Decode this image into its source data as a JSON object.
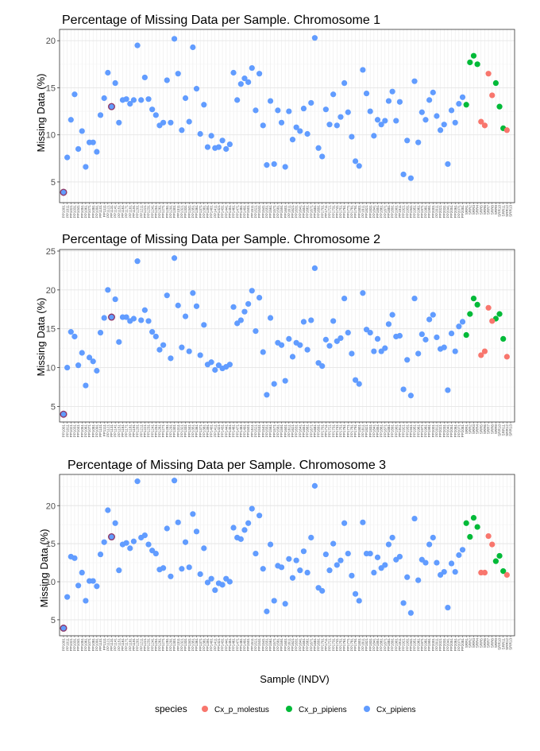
{
  "colors": {
    "Cx_p_molestus": "#F8766D",
    "Cx_p_pipiens": "#00BA38",
    "Cx_pipiens": "#619CFF",
    "highlight_outline": "#8E3A6A"
  },
  "shared": {
    "xlabel": "Sample (INDV)",
    "legend": {
      "title": "species",
      "items": [
        "Cx_p_molestus",
        "Cx_p_pipiens",
        "Cx_pipiens"
      ],
      "placement": "bottom"
    }
  },
  "chart_data": [
    {
      "type": "scatter",
      "title": "Percentage of Missing Data per Sample. Chromosome 1",
      "ylabel": "Missing Data (%)",
      "yticks": [
        5,
        10,
        15,
        20
      ],
      "ylim": [
        2.8,
        21.2
      ],
      "grid": true,
      "x": [
        "PP1001",
        "PP1011",
        "PP1021",
        "PP1031",
        "PP1041",
        "PP1051",
        "PP1061",
        "PP1071",
        "PP1081",
        "PP1091",
        "PP1101",
        "PP1111",
        "PP1121",
        "PP1131",
        "PP1141",
        "PP1151",
        "PP1161",
        "PP1171",
        "PP1181",
        "PP1191",
        "PP1201",
        "PP1211",
        "PP1221",
        "PP1231",
        "PP1241",
        "PP1251",
        "PP1261",
        "PP1271",
        "PP1281",
        "PP1291",
        "PP1301",
        "PP1311",
        "PP1321",
        "PP1331",
        "PP1341",
        "PP1351",
        "PP1361",
        "PP1371",
        "PP1381",
        "PP1391",
        "PP1401",
        "PP1411",
        "PP1421",
        "PP1431",
        "PP1441",
        "PP1451",
        "PP1461",
        "PP1471",
        "PP1481",
        "PP1491",
        "PP1501",
        "PP1511",
        "PP1521",
        "PP1531",
        "PP1541",
        "PP1551",
        "PP1561",
        "PP1571",
        "PP1581",
        "PP1591",
        "PP1601",
        "PP1611",
        "PP1621",
        "PP1631",
        "PP1641",
        "PP1651",
        "PP1661",
        "PP1671",
        "PP1681",
        "PP1691",
        "PP1701",
        "PP1711",
        "PP1721",
        "PP1731",
        "PP1741",
        "PP1751",
        "PP1761",
        "PP1771",
        "PP1781",
        "PP1791",
        "PP1801",
        "PP1811",
        "PP1821",
        "PP1831",
        "PP1841",
        "PP1851",
        "PP1861",
        "PP1871",
        "PP1881",
        "PP1891",
        "PP1901",
        "PP1911",
        "PP1921",
        "PP1931",
        "PP1941",
        "PP1951",
        "PP1961",
        "PP1971",
        "PP1981",
        "PP1991",
        "PP2001",
        "PP2011",
        "PP2021",
        "PP2031",
        "PP2041",
        "PP2051",
        "PP2061",
        "PP2071",
        "PP2081",
        "SRR1",
        "SRR2",
        "SRR3",
        "SRR4",
        "SRR5",
        "SRR6",
        "SRR7",
        "SRR8",
        "SRR9",
        "SRR10",
        "SRR11",
        "SRR12",
        "SRR13"
      ],
      "series": [
        {
          "name": "Cx_pipiens",
          "x_index": [
            0,
            1,
            2,
            3,
            4,
            5,
            6,
            7,
            8,
            9,
            10,
            11,
            12,
            13,
            14,
            15,
            16,
            17,
            18,
            19,
            20,
            21,
            22,
            23,
            24,
            25,
            26,
            27,
            28,
            29,
            30,
            31,
            32,
            33,
            34,
            35,
            36,
            37,
            38,
            39,
            40,
            41,
            42,
            43,
            44,
            45,
            46,
            47,
            48,
            49,
            50,
            51,
            52,
            53,
            54,
            55,
            56,
            57,
            58,
            59,
            60,
            61,
            62,
            63,
            64,
            65,
            66,
            67,
            68,
            69,
            70,
            71,
            72,
            73,
            74,
            75,
            76,
            77,
            78,
            79,
            80,
            81,
            82,
            83,
            84,
            85,
            86,
            87,
            88,
            89,
            90,
            91,
            92,
            93,
            94,
            95,
            96,
            97,
            98,
            99,
            100,
            101,
            102,
            103,
            104,
            105,
            106,
            107,
            108
          ],
          "values": [
            3.9,
            7.6,
            11.6,
            14.3,
            8.5,
            10.4,
            6.6,
            9.2,
            9.2,
            8.2,
            12.1,
            13.9,
            16.6,
            13.0,
            15.5,
            11.3,
            13.7,
            13.8,
            13.3,
            13.7,
            19.5,
            13.7,
            16.1,
            13.8,
            12.7,
            12.1,
            11.0,
            11.3,
            15.8,
            11.3,
            20.2,
            16.5,
            10.5,
            13.9,
            11.4,
            19.3,
            14.9,
            10.1,
            13.2,
            8.7,
            9.9,
            8.6,
            8.7,
            9.4,
            8.5,
            9.0,
            16.6,
            13.7,
            15.4,
            16.0,
            15.6,
            17.1,
            12.6,
            16.5,
            11.0,
            6.8,
            13.6,
            6.9,
            12.6,
            11.3,
            6.6,
            12.5,
            9.5,
            10.8,
            10.4,
            12.8,
            10.1,
            13.4,
            20.3,
            8.6,
            7.7,
            12.7,
            11.1,
            14.3,
            11.0,
            11.9,
            15.5,
            12.4,
            9.8,
            7.2,
            6.7,
            16.9,
            14.4,
            12.5,
            9.9,
            11.6,
            11.1,
            11.5,
            13.6,
            14.6,
            11.5,
            13.5,
            5.8,
            9.4,
            5.4,
            15.7,
            9.2,
            12.4,
            11.6,
            13.7,
            14.5,
            12.0,
            10.5,
            11.1,
            6.9,
            12.6,
            11.3,
            13.3,
            14.0
          ]
        },
        {
          "name": "Cx_p_pipiens",
          "x_index": [
            109,
            110,
            111,
            112,
            117,
            118,
            119
          ],
          "values": [
            13.2,
            17.7,
            18.4,
            17.5,
            15.5,
            13.0,
            10.7
          ]
        },
        {
          "name": "Cx_p_molestus",
          "x_index": [
            113,
            114,
            115,
            116,
            120
          ],
          "values": [
            11.4,
            11.0,
            16.5,
            14.2,
            10.5
          ]
        }
      ],
      "highlighted": [
        {
          "x_index": 0,
          "value": 3.9
        },
        {
          "x_index": 13,
          "value": 13.0
        }
      ]
    },
    {
      "type": "scatter",
      "title": "Percentage of Missing Data per Sample. Chromosome 2",
      "ylabel": "Missing Data (%)",
      "yticks": [
        5,
        10,
        15,
        20,
        25
      ],
      "ylim": [
        3.0,
        25.2
      ],
      "grid": true,
      "series": [
        {
          "name": "Cx_pipiens",
          "x_index": [
            0,
            1,
            2,
            3,
            4,
            5,
            6,
            7,
            8,
            9,
            10,
            11,
            12,
            13,
            14,
            15,
            16,
            17,
            18,
            19,
            20,
            21,
            22,
            23,
            24,
            25,
            26,
            27,
            28,
            29,
            30,
            31,
            32,
            33,
            34,
            35,
            36,
            37,
            38,
            39,
            40,
            41,
            42,
            43,
            44,
            45,
            46,
            47,
            48,
            49,
            50,
            51,
            52,
            53,
            54,
            55,
            56,
            57,
            58,
            59,
            60,
            61,
            62,
            63,
            64,
            65,
            66,
            67,
            68,
            69,
            70,
            71,
            72,
            73,
            74,
            75,
            76,
            77,
            78,
            79,
            80,
            81,
            82,
            83,
            84,
            85,
            86,
            87,
            88,
            89,
            90,
            91,
            92,
            93,
            94,
            95,
            96,
            97,
            98,
            99,
            100,
            101,
            102,
            103,
            104,
            105,
            106,
            107,
            108
          ],
          "values": [
            4.0,
            10.0,
            14.6,
            14.0,
            10.3,
            11.9,
            7.7,
            11.3,
            10.8,
            9.6,
            14.5,
            16.4,
            20.0,
            16.5,
            18.8,
            13.3,
            16.5,
            16.5,
            16.0,
            16.3,
            23.7,
            16.1,
            17.4,
            16.0,
            14.6,
            14.0,
            12.3,
            12.9,
            19.3,
            11.2,
            24.1,
            18.0,
            12.6,
            16.6,
            12.1,
            19.6,
            17.9,
            11.6,
            15.5,
            10.4,
            10.7,
            9.7,
            10.3,
            9.9,
            10.1,
            10.4,
            17.8,
            15.7,
            16.1,
            17.2,
            18.2,
            19.9,
            14.7,
            19.0,
            12.0,
            6.5,
            16.4,
            7.9,
            13.2,
            12.9,
            8.3,
            13.7,
            11.4,
            13.2,
            12.9,
            15.9,
            12.3,
            16.1,
            22.8,
            10.6,
            10.2,
            13.6,
            12.8,
            16.0,
            13.4,
            13.8,
            18.9,
            14.5,
            11.8,
            8.4,
            7.9,
            19.6,
            14.9,
            14.5,
            12.1,
            13.7,
            12.1,
            12.5,
            15.6,
            16.8,
            14.0,
            14.1,
            7.2,
            11.0,
            6.4,
            18.9,
            11.8,
            14.3,
            13.6,
            16.2,
            16.8,
            13.9,
            12.4,
            12.6,
            7.1,
            14.4,
            12.1,
            15.3,
            15.9
          ]
        },
        {
          "name": "Cx_p_pipiens",
          "x_index": [
            109,
            110,
            111,
            112,
            117,
            118,
            119
          ],
          "values": [
            14.2,
            16.9,
            18.9,
            18.1,
            16.3,
            16.9,
            13.7
          ]
        },
        {
          "name": "Cx_p_molestus",
          "x_index": [
            113,
            114,
            115,
            116,
            120
          ],
          "values": [
            11.6,
            12.1,
            17.7,
            16.0,
            11.4
          ]
        }
      ],
      "highlighted": [
        {
          "x_index": 0,
          "value": 4.0
        },
        {
          "x_index": 13,
          "value": 16.5
        }
      ]
    },
    {
      "type": "scatter",
      "title": "Percentage of Missing Data per Sample. Chromosome 3",
      "ylabel": "Missing Data (%)",
      "yticks": [
        5,
        10,
        15,
        20
      ],
      "ylim": [
        2.9,
        24.1
      ],
      "grid": true,
      "series": [
        {
          "name": "Cx_pipiens",
          "x_index": [
            0,
            1,
            2,
            3,
            4,
            5,
            6,
            7,
            8,
            9,
            10,
            11,
            12,
            13,
            14,
            15,
            16,
            17,
            18,
            19,
            20,
            21,
            22,
            23,
            24,
            25,
            26,
            27,
            28,
            29,
            30,
            31,
            32,
            33,
            34,
            35,
            36,
            37,
            38,
            39,
            40,
            41,
            42,
            43,
            44,
            45,
            46,
            47,
            48,
            49,
            50,
            51,
            52,
            53,
            54,
            55,
            56,
            57,
            58,
            59,
            60,
            61,
            62,
            63,
            64,
            65,
            66,
            67,
            68,
            69,
            70,
            71,
            72,
            73,
            74,
            75,
            76,
            77,
            78,
            79,
            80,
            81,
            82,
            83,
            84,
            85,
            86,
            87,
            88,
            89,
            90,
            91,
            92,
            93,
            94,
            95,
            96,
            97,
            98,
            99,
            100,
            101,
            102,
            103,
            104,
            105,
            106,
            107,
            108
          ],
          "values": [
            3.9,
            8.0,
            13.3,
            13.1,
            9.5,
            11.2,
            7.5,
            10.1,
            10.1,
            9.4,
            13.6,
            15.2,
            19.4,
            15.9,
            17.7,
            11.5,
            14.9,
            15.1,
            14.4,
            15.3,
            23.2,
            15.8,
            16.1,
            14.9,
            14.1,
            13.7,
            11.6,
            11.8,
            17.0,
            10.7,
            23.3,
            17.8,
            11.7,
            15.2,
            11.9,
            18.9,
            16.6,
            11.0,
            14.4,
            9.9,
            10.4,
            8.9,
            9.8,
            9.6,
            10.4,
            10.0,
            17.1,
            15.8,
            15.6,
            16.8,
            17.7,
            19.6,
            13.7,
            18.7,
            11.7,
            6.1,
            14.9,
            7.5,
            12.1,
            11.9,
            7.1,
            13.0,
            10.5,
            12.8,
            11.5,
            14.0,
            11.2,
            15.8,
            22.6,
            9.2,
            8.8,
            13.6,
            11.5,
            15.0,
            12.2,
            12.8,
            17.7,
            13.7,
            10.8,
            8.4,
            7.5,
            17.8,
            13.7,
            13.7,
            11.2,
            13.2,
            11.8,
            12.2,
            14.9,
            15.8,
            12.9,
            13.3,
            7.2,
            10.6,
            5.9,
            18.3,
            10.2,
            12.9,
            12.5,
            14.9,
            15.8,
            12.5,
            10.9,
            11.3,
            6.6,
            12.4,
            11.3,
            13.5,
            14.2
          ]
        },
        {
          "name": "Cx_p_pipiens",
          "x_index": [
            109,
            110,
            111,
            112,
            117,
            118,
            119
          ],
          "values": [
            17.7,
            15.9,
            18.4,
            17.2,
            12.7,
            13.4,
            11.4
          ]
        },
        {
          "name": "Cx_p_molestus",
          "x_index": [
            113,
            114,
            115,
            116,
            120
          ],
          "values": [
            11.2,
            11.2,
            16.0,
            14.9,
            10.9
          ]
        }
      ],
      "highlighted": [
        {
          "x_index": 0,
          "value": 3.9
        },
        {
          "x_index": 13,
          "value": 15.9
        }
      ]
    }
  ]
}
